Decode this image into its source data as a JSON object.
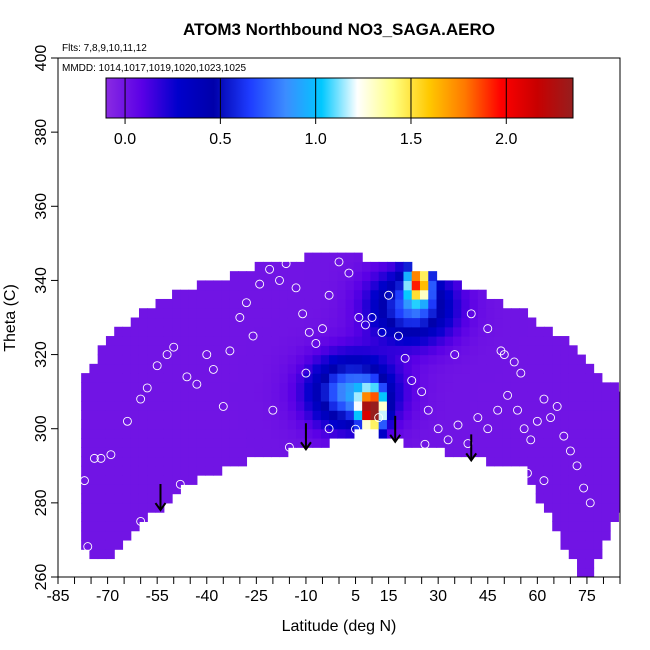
{
  "chart_data": {
    "type": "heatmap",
    "title": "ATOM3 Northbound NO3_SAGA.AERO",
    "flights_label": "Flts: 7,8,9,10,11,12",
    "dates_label": "MMDD: 1014,1017,1019,1020,1023,1025",
    "xlabel": "Latitude (deg N)",
    "ylabel": "Theta (C)",
    "xlim": [
      -85,
      85
    ],
    "ylim": [
      260,
      400
    ],
    "x_ticks": [
      -85,
      -70,
      -55,
      -40,
      -25,
      -10,
      5,
      15,
      30,
      45,
      60,
      75
    ],
    "x_tick_labels": [
      "-85",
      "-70",
      "-55",
      "-40",
      "-25",
      "-10",
      "5",
      "15",
      "30",
      "45",
      "60",
      "75"
    ],
    "y_ticks": [
      260,
      280,
      300,
      320,
      340,
      360,
      380,
      400
    ],
    "y_tick_labels": [
      "260",
      "280",
      "300",
      "320",
      "340",
      "360",
      "380",
      "400"
    ],
    "colorbar": {
      "min": -0.1,
      "max": 2.35,
      "ticks": [
        0.0,
        0.5,
        1.0,
        1.5,
        2.0
      ],
      "tick_labels": [
        "0.0",
        "0.5",
        "1.0",
        "1.5",
        "2.0"
      ],
      "colors": [
        "#8a2be2",
        "#5a00e6",
        "#0000cc",
        "#0000aa",
        "#1e3cff",
        "#3c8cff",
        "#00c8ff",
        "#ffffff",
        "#ffff80",
        "#ffc800",
        "#ff7800",
        "#ff0000",
        "#c80000",
        "#961e1e"
      ]
    },
    "arrows_at_latitude": [
      -54,
      -10,
      17,
      40
    ],
    "domain_boundary": {
      "lower": [
        [
          -78,
          270
        ],
        [
          -73,
          263
        ],
        [
          -45,
          286
        ],
        [
          -25,
          292
        ],
        [
          0,
          297
        ],
        [
          8,
          300
        ],
        [
          20,
          296
        ],
        [
          40,
          292
        ],
        [
          55,
          290
        ],
        [
          73,
          261
        ],
        [
          76,
          260
        ],
        [
          85,
          278
        ]
      ],
      "upper": [
        [
          -78,
          312
        ],
        [
          -70,
          324
        ],
        [
          -55,
          335
        ],
        [
          -38,
          340
        ],
        [
          -20,
          345
        ],
        [
          -5,
          347
        ],
        [
          10,
          346
        ],
        [
          25,
          343
        ],
        [
          40,
          338
        ],
        [
          55,
          332
        ],
        [
          70,
          323
        ],
        [
          85,
          310
        ]
      ]
    },
    "hotspots": [
      {
        "lat": 10,
        "theta": 305,
        "value": 2.2
      },
      {
        "lat": 24,
        "theta": 340,
        "value": 1.6
      }
    ],
    "enhanced_regions": [
      {
        "lat": 4,
        "theta": 310,
        "value": 0.9
      },
      {
        "lat": 22,
        "theta": 333,
        "value": 0.75
      }
    ],
    "background_value": 0.0,
    "sample_points": [
      [
        -77,
        286
      ],
      [
        -76,
        261
      ],
      [
        -74,
        292
      ],
      [
        -72,
        292
      ],
      [
        -69,
        293
      ],
      [
        -64,
        302
      ],
      [
        -60,
        308
      ],
      [
        -58,
        311
      ],
      [
        -55,
        317
      ],
      [
        -52,
        320
      ],
      [
        -50,
        322
      ],
      [
        -46,
        314
      ],
      [
        -43,
        312
      ],
      [
        -40,
        320
      ],
      [
        -38,
        316
      ],
      [
        -35,
        306
      ],
      [
        -33,
        321
      ],
      [
        -30,
        330
      ],
      [
        -28,
        334
      ],
      [
        -26,
        325
      ],
      [
        -24,
        339
      ],
      [
        -21,
        343
      ],
      [
        -18,
        340
      ],
      [
        -16,
        345
      ],
      [
        -13,
        338
      ],
      [
        -11,
        331
      ],
      [
        -9,
        326
      ],
      [
        -7,
        323
      ],
      [
        -5,
        327
      ],
      [
        -3,
        336
      ],
      [
        0,
        345
      ],
      [
        3,
        342
      ],
      [
        6,
        330
      ],
      [
        8,
        328
      ],
      [
        10,
        330
      ],
      [
        13,
        326
      ],
      [
        15,
        336
      ],
      [
        18,
        325
      ],
      [
        20,
        319
      ],
      [
        22,
        313
      ],
      [
        25,
        310
      ],
      [
        27,
        305
      ],
      [
        30,
        300
      ],
      [
        33,
        297
      ],
      [
        36,
        301
      ],
      [
        39,
        296
      ],
      [
        42,
        303
      ],
      [
        45,
        300
      ],
      [
        48,
        305
      ],
      [
        51,
        309
      ],
      [
        54,
        305
      ],
      [
        56,
        300
      ],
      [
        58,
        297
      ],
      [
        60,
        302
      ],
      [
        62,
        308
      ],
      [
        64,
        303
      ],
      [
        66,
        306
      ],
      [
        68,
        298
      ],
      [
        70,
        294
      ],
      [
        72,
        290
      ],
      [
        74,
        284
      ],
      [
        76,
        280
      ],
      [
        -10,
        315
      ],
      [
        -3,
        300
      ],
      [
        5,
        296
      ],
      [
        12,
        303
      ],
      [
        35,
        320
      ],
      [
        40,
        331
      ],
      [
        45,
        327
      ],
      [
        50,
        320
      ],
      [
        55,
        315
      ],
      [
        -20,
        305
      ],
      [
        -48,
        285
      ],
      [
        -60,
        275
      ],
      [
        62,
        286
      ],
      [
        57,
        288
      ],
      [
        -15,
        294
      ],
      [
        26,
        295
      ],
      [
        49,
        321
      ],
      [
        53,
        318
      ]
    ]
  }
}
